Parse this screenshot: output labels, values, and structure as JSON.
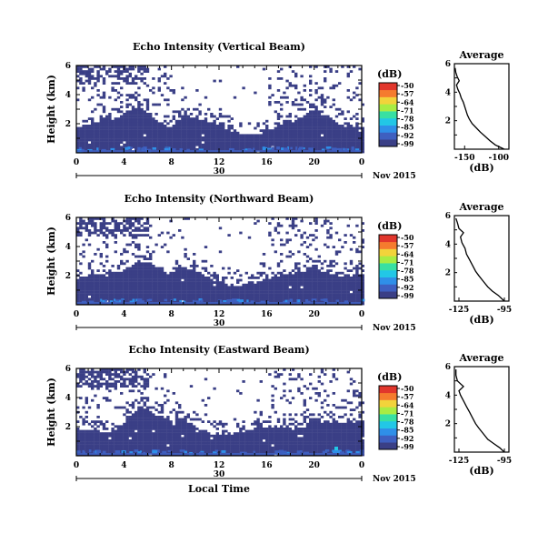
{
  "figure": {
    "x_axis_label": "Local Time",
    "date_label": "Nov 2015",
    "day_label": "30",
    "colorbar_unit": "(dB)",
    "colorbar_ticks": [
      "-50",
      "-57",
      "-64",
      "-71",
      "-78",
      "-85",
      "-92",
      "-99"
    ],
    "colorbar_colors": [
      "#3a3f86",
      "#3e5fc0",
      "#2f8fe8",
      "#22c7e6",
      "#38e0a2",
      "#a8ec44",
      "#f2d33b",
      "#f57b2e",
      "#e1362c"
    ],
    "echo_background_color": "#3a3f86"
  },
  "chart_data": [
    {
      "type": "heatmap",
      "title": "Echo Intensity (Vertical Beam)",
      "xlabel": "",
      "ylabel": "Height (km)",
      "x_ticks": [
        "0",
        "4",
        "8",
        "12",
        "16",
        "20",
        "0"
      ],
      "y_ticks": [
        "6",
        "4",
        "2"
      ],
      "xlim": [
        0,
        24
      ],
      "ylim": [
        0,
        6
      ],
      "average": {
        "title": "Average",
        "xlabel": "(dB)",
        "x_ticks": [
          "-150",
          "-100"
        ],
        "y_ticks": [
          "6",
          "4",
          "2"
        ],
        "xlim": [
          -165,
          -85
        ],
        "profile": [
          [
            -92,
            0.0
          ],
          [
            -105,
            0.3
          ],
          [
            -113,
            0.6
          ],
          [
            -120,
            0.9
          ],
          [
            -127,
            1.2
          ],
          [
            -133,
            1.5
          ],
          [
            -139,
            1.8
          ],
          [
            -143,
            2.1
          ],
          [
            -146,
            2.4
          ],
          [
            -148,
            2.7
          ],
          [
            -150,
            3.0
          ],
          [
            -152,
            3.3
          ],
          [
            -155,
            3.6
          ],
          [
            -157,
            3.9
          ],
          [
            -160,
            4.2
          ],
          [
            -162,
            4.5
          ],
          [
            -158,
            4.8
          ],
          [
            -161,
            5.1
          ],
          [
            -163,
            5.4
          ],
          [
            -164,
            5.7
          ]
        ]
      }
    },
    {
      "type": "heatmap",
      "title": "Echo Intensity (Northward Beam)",
      "xlabel": "",
      "ylabel": "Height (km)",
      "x_ticks": [
        "0",
        "4",
        "8",
        "12",
        "16",
        "20",
        "0"
      ],
      "y_ticks": [
        "6",
        "4",
        "2"
      ],
      "xlim": [
        0,
        24
      ],
      "ylim": [
        0,
        6
      ],
      "average": {
        "title": "Average",
        "xlabel": "(dB)",
        "x_ticks": [
          "-125",
          "-95"
        ],
        "y_ticks": [
          "6",
          "4",
          "2"
        ],
        "xlim": [
          -128,
          -92
        ],
        "profile": [
          [
            -95,
            0.0
          ],
          [
            -99,
            0.4
          ],
          [
            -103,
            0.7
          ],
          [
            -106,
            1.0
          ],
          [
            -109,
            1.4
          ],
          [
            -112,
            1.8
          ],
          [
            -114,
            2.1
          ],
          [
            -116,
            2.5
          ],
          [
            -118,
            2.9
          ],
          [
            -120,
            3.3
          ],
          [
            -121,
            3.7
          ],
          [
            -123,
            4.1
          ],
          [
            -124,
            4.5
          ],
          [
            -122,
            4.8
          ],
          [
            -125,
            5.1
          ],
          [
            -126,
            5.5
          ],
          [
            -127,
            5.8
          ]
        ]
      }
    },
    {
      "type": "heatmap",
      "title": "Echo Intensity (Eastward Beam)",
      "xlabel": "",
      "ylabel": "Height (km)",
      "x_ticks": [
        "0",
        "4",
        "8",
        "12",
        "16",
        "20",
        "0"
      ],
      "y_ticks": [
        "6",
        "4",
        "2"
      ],
      "xlim": [
        0,
        24
      ],
      "ylim": [
        0,
        6
      ],
      "average": {
        "title": "Average",
        "xlabel": "(dB)",
        "x_ticks": [
          "-125",
          "-95"
        ],
        "y_ticks": [
          "6",
          "4",
          "2"
        ],
        "xlim": [
          -128,
          -92
        ],
        "profile": [
          [
            -95,
            0.0
          ],
          [
            -98,
            0.3
          ],
          [
            -102,
            0.6
          ],
          [
            -106,
            0.9
          ],
          [
            -109,
            1.3
          ],
          [
            -112,
            1.7
          ],
          [
            -114,
            2.0
          ],
          [
            -116,
            2.4
          ],
          [
            -118,
            2.8
          ],
          [
            -120,
            3.2
          ],
          [
            -122,
            3.6
          ],
          [
            -124,
            4.0
          ],
          [
            -125,
            4.3
          ],
          [
            -122,
            4.6
          ],
          [
            -126,
            5.0
          ],
          [
            -127,
            5.4
          ],
          [
            -127,
            5.8
          ]
        ]
      }
    }
  ]
}
